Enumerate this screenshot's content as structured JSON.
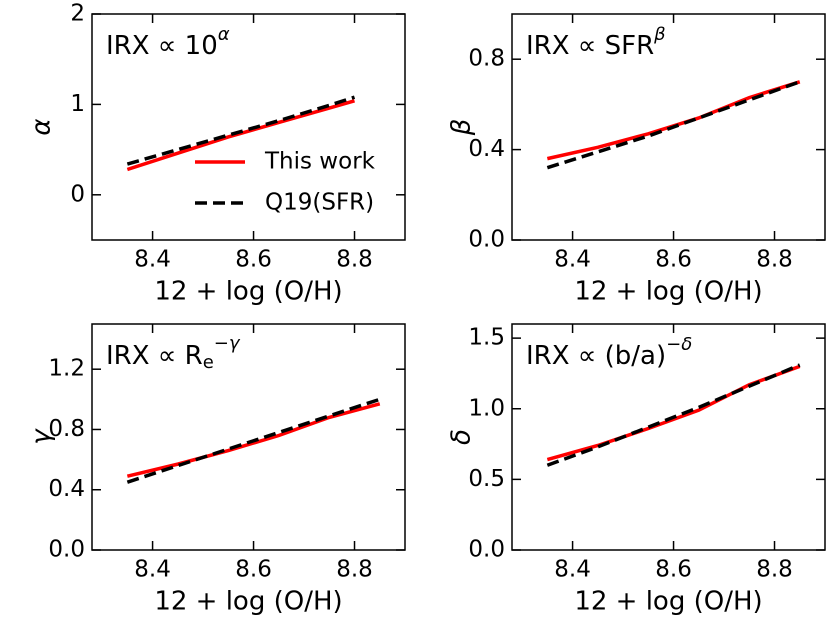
{
  "chart_data": [
    {
      "type": "line",
      "annotation": {
        "base": "IRX ∝ 10",
        "sup": "α"
      },
      "xlabel": "12 + log (O/H)",
      "ylabel": "α",
      "x": [
        8.35,
        8.45,
        8.55,
        8.65,
        8.75,
        8.8
      ],
      "series": [
        {
          "name": "This work",
          "color": "#ff0000",
          "dash": false,
          "values": [
            0.28,
            0.46,
            0.64,
            0.8,
            0.96,
            1.04
          ]
        },
        {
          "name": "Q19(SFR)",
          "color": "#000000",
          "dash": true,
          "values": [
            0.34,
            0.5,
            0.66,
            0.82,
            0.99,
            1.08
          ]
        }
      ],
      "legend": "lower right",
      "xlim": [
        8.28,
        8.9
      ],
      "xticks": [
        8.4,
        8.6,
        8.8
      ],
      "ylim": [
        -0.5,
        2
      ],
      "yticks": [
        0,
        1,
        2
      ]
    },
    {
      "type": "line",
      "annotation": {
        "base": "IRX ∝ SFR",
        "sup": "β"
      },
      "xlabel": "12 + log (O/H)",
      "ylabel": "β",
      "x": [
        8.35,
        8.45,
        8.55,
        8.65,
        8.75,
        8.85
      ],
      "series": [
        {
          "color": "#ff0000",
          "dash": false,
          "values": [
            0.36,
            0.41,
            0.47,
            0.54,
            0.63,
            0.7
          ]
        },
        {
          "color": "#000000",
          "dash": true,
          "values": [
            0.32,
            0.39,
            0.46,
            0.54,
            0.62,
            0.7
          ]
        }
      ],
      "xlim": [
        8.28,
        8.9
      ],
      "xticks": [
        8.4,
        8.6,
        8.8
      ],
      "ylim": [
        0,
        1.0
      ],
      "yticks": [
        {
          "value": 0,
          "label": "0.0"
        },
        0.4,
        0.8
      ]
    },
    {
      "type": "line",
      "annotation": {
        "base": "IRX ∝ R",
        "sub": "e",
        "sup": "−γ"
      },
      "xlabel": "12 + log (O/H)",
      "ylabel": "γ",
      "x": [
        8.35,
        8.45,
        8.55,
        8.65,
        8.75,
        8.85
      ],
      "series": [
        {
          "color": "#ff0000",
          "dash": false,
          "values": [
            0.49,
            0.57,
            0.66,
            0.76,
            0.88,
            0.97
          ]
        },
        {
          "color": "#000000",
          "dash": true,
          "values": [
            0.45,
            0.56,
            0.67,
            0.78,
            0.89,
            1.0
          ]
        }
      ],
      "xlim": [
        8.28,
        8.9
      ],
      "xticks": [
        8.4,
        8.6,
        8.8
      ],
      "ylim": [
        0,
        1.5
      ],
      "yticks": [
        {
          "value": 0,
          "label": "0.0"
        },
        0.4,
        0.8,
        1.2
      ]
    },
    {
      "type": "line",
      "annotation": {
        "base": "IRX ∝ (b/a)",
        "sup": "−δ"
      },
      "xlabel": "12 + log (O/H)",
      "ylabel": "δ",
      "x": [
        8.35,
        8.45,
        8.55,
        8.65,
        8.75,
        8.85
      ],
      "series": [
        {
          "color": "#ff0000",
          "dash": false,
          "values": [
            0.64,
            0.74,
            0.86,
            0.99,
            1.17,
            1.3
          ]
        },
        {
          "color": "#000000",
          "dash": true,
          "values": [
            0.6,
            0.73,
            0.87,
            1.01,
            1.16,
            1.31
          ]
        }
      ],
      "xlim": [
        8.28,
        8.9
      ],
      "xticks": [
        8.4,
        8.6,
        8.8
      ],
      "ylim": [
        0,
        1.6
      ],
      "yticks": [
        {
          "value": 0,
          "label": "0.0"
        },
        0.5,
        {
          "value": 1,
          "label": "1.0"
        },
        1.5
      ]
    }
  ]
}
